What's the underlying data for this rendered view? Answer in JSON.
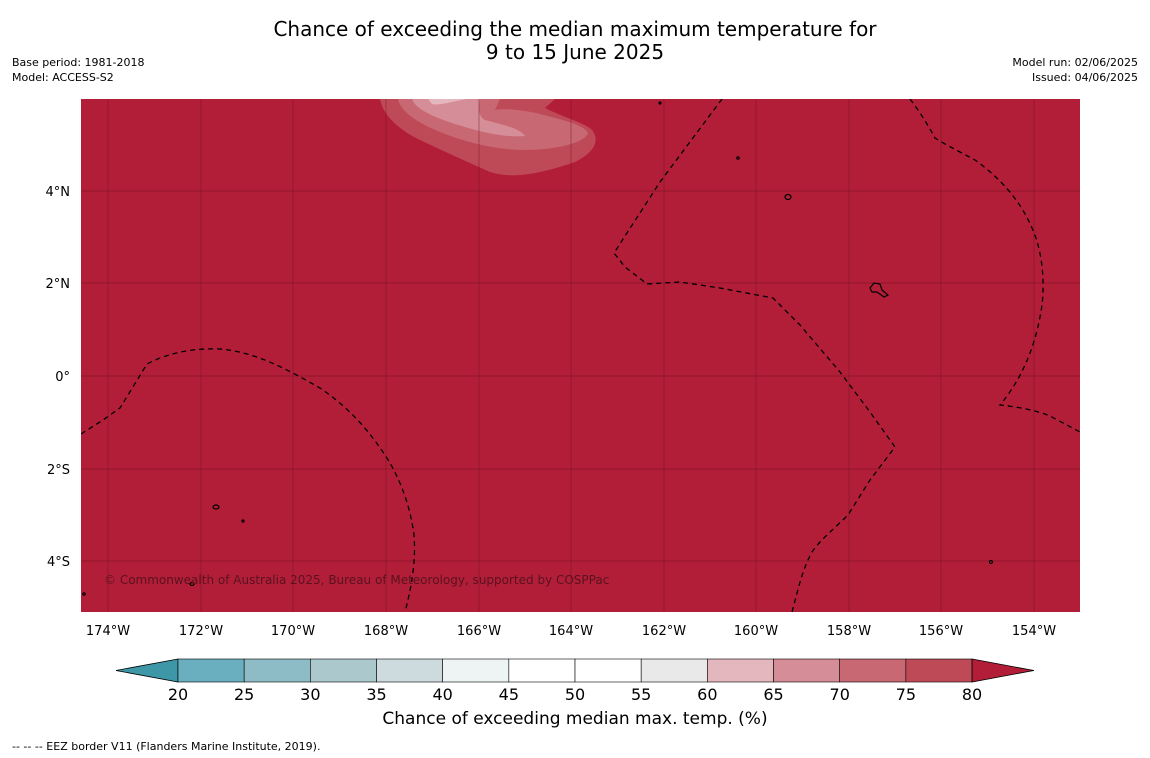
{
  "title": {
    "line1": "Chance of exceeding the median maximum temperature for",
    "line2": "9 to 15 June 2025"
  },
  "meta_left": {
    "base_period": "Base period: 1981-2018",
    "model": "Model: ACCESS-S2"
  },
  "meta_right": {
    "model_run": "Model run: 02/06/2025",
    "issued": "Issued: 04/06/2025"
  },
  "map": {
    "background_color": "#b21e38",
    "lat_labels": [
      "4°N",
      "2°N",
      "0°",
      "2°S",
      "4°S"
    ],
    "lon_labels": [
      "174°W",
      "172°W",
      "170°W",
      "168°W",
      "166°W",
      "164°W",
      "162°W",
      "160°W",
      "158°W",
      "156°W",
      "154°W"
    ],
    "copyright": "© Commonwealth of Australia 2025, Bureau of Meteorology, supported by COSPPac"
  },
  "colorbar": {
    "ticks": [
      "20",
      "25",
      "30",
      "35",
      "40",
      "45",
      "50",
      "55",
      "60",
      "65",
      "70",
      "75",
      "80"
    ],
    "colors": [
      "#3d97a7",
      "#69afbf",
      "#8ebcc6",
      "#abc8cd",
      "#cddbde",
      "#eef3f4",
      "#ffffff",
      "#ffffff",
      "#e9e9e9",
      "#e4b6be",
      "#d58d98",
      "#c86872",
      "#bf4a57",
      "#b21e38"
    ],
    "label": "Chance of exceeding median max. temp. (%)"
  },
  "footnote": "--  --  -- EEZ border V11 (Flanders Marine Institute, 2019)."
}
